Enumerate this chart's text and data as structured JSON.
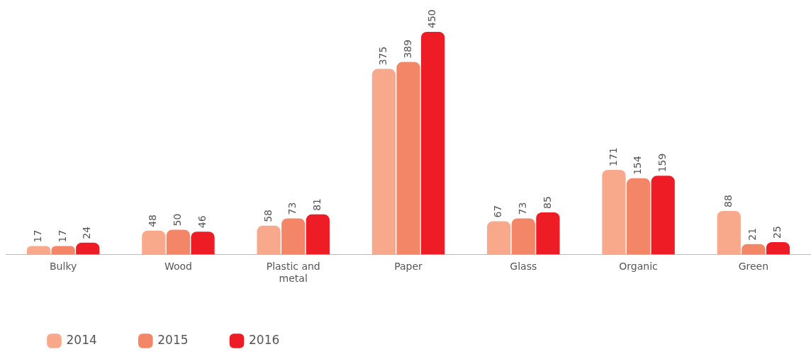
{
  "chart_data": {
    "type": "bar",
    "categories": [
      "Bulky",
      "Wood",
      "Plastic and metal",
      "Paper",
      "Glass",
      "Organic",
      "Green"
    ],
    "series": [
      {
        "name": "2014",
        "color": "#f9a98b",
        "values": [
          17,
          48,
          58,
          375,
          67,
          171,
          88
        ]
      },
      {
        "name": "2015",
        "color": "#f48668",
        "values": [
          17,
          50,
          73,
          389,
          73,
          154,
          21
        ]
      },
      {
        "name": "2016",
        "color": "#ee1c25",
        "values": [
          24,
          46,
          81,
          450,
          85,
          159,
          25
        ]
      }
    ],
    "data_labels": true,
    "legend": "bottom left",
    "grid": false
  }
}
